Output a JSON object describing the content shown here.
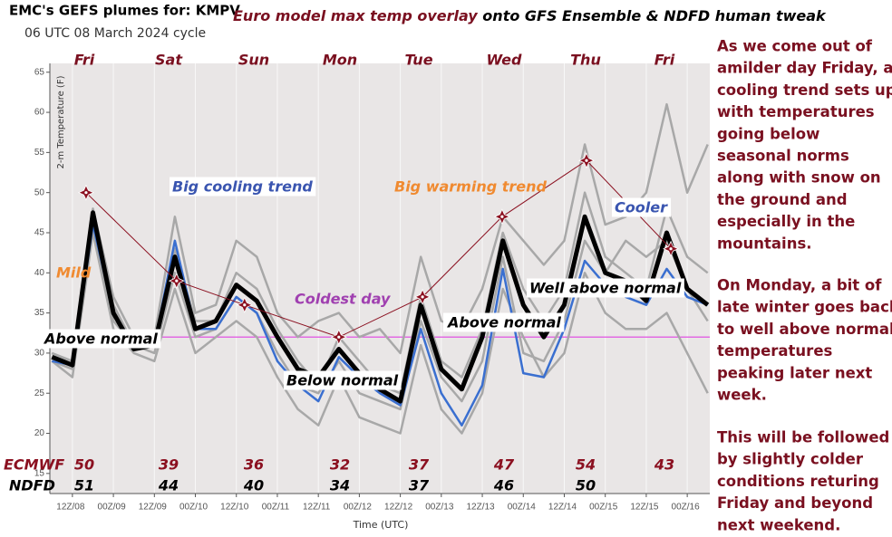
{
  "chart_data": {
    "type": "line",
    "title": "EMC's GEFS plumes for: KMPV",
    "cycle": "06 UTC 08 March 2024 cycle",
    "subtitle_highlight": "Euro model max temp overlay",
    "subtitle_rest": " onto GFS Ensemble & NDFD human tweak",
    "y_label": "2-m Temperature (F)",
    "x_label": "Time (UTC)",
    "xlim": [
      5.4,
      198.6
    ],
    "ylim": [
      12.5,
      66.1
    ],
    "yticks": [
      15,
      20,
      25,
      30,
      35,
      40,
      45,
      50,
      55,
      60,
      65
    ],
    "xticks": [
      {
        "value": 12,
        "label": "12Z/08"
      },
      {
        "value": 24,
        "label": "00Z/09"
      },
      {
        "value": 36,
        "label": "12Z/09"
      },
      {
        "value": 48,
        "label": "00Z/10"
      },
      {
        "value": 60,
        "label": "12Z/10"
      },
      {
        "value": 72,
        "label": "00Z/11"
      },
      {
        "value": 84,
        "label": "12Z/11"
      },
      {
        "value": 96,
        "label": "00Z/12"
      },
      {
        "value": 108,
        "label": "12Z/12"
      },
      {
        "value": 120,
        "label": "00Z/13"
      },
      {
        "value": 132,
        "label": "12Z/13"
      },
      {
        "value": 144,
        "label": "00Z/14"
      },
      {
        "value": 156,
        "label": "12Z/14"
      },
      {
        "value": 168,
        "label": "00Z/15"
      },
      {
        "value": 180,
        "label": "12Z/15"
      },
      {
        "value": 192,
        "label": "00Z/16"
      }
    ],
    "grid": true,
    "days": [
      "Fri",
      "Sat",
      "Sun",
      "Mon",
      "Tue",
      "Wed",
      "Thu",
      "Fri"
    ],
    "x": [
      6,
      12,
      18,
      24,
      30,
      36,
      42,
      48,
      54,
      60,
      66,
      72,
      78,
      84,
      90,
      96,
      102,
      108,
      114,
      120,
      126,
      132,
      138,
      144,
      150,
      156,
      162,
      168,
      174,
      180,
      186,
      192,
      198
    ],
    "series": [
      {
        "color": "#a8a8a8",
        "width": 2.5,
        "values": [
          30,
          29,
          48,
          37,
          32,
          32,
          47,
          35,
          36,
          44,
          42,
          35,
          32,
          34,
          35,
          32,
          33,
          30,
          42,
          34,
          33,
          38,
          47,
          44,
          41,
          44,
          56,
          46,
          47,
          50,
          61,
          50,
          56
        ]
      },
      {
        "color": "#a8a8a8",
        "width": 2.5,
        "values": [
          29,
          27,
          45,
          33,
          30,
          29,
          38,
          30,
          32,
          34,
          32,
          27,
          23,
          21,
          27,
          22,
          21,
          20,
          31,
          23,
          20,
          25,
          38,
          32,
          27,
          30,
          40,
          35,
          33,
          33,
          35,
          30,
          25
        ]
      },
      {
        "color": "#a8a8a8",
        "width": 2.5,
        "values": [
          30,
          28.5,
          47,
          36,
          31,
          31,
          43,
          34,
          34,
          40,
          38,
          33,
          29,
          26,
          32,
          29,
          26,
          25,
          37,
          29,
          27,
          33,
          45,
          38,
          34,
          38,
          50,
          42,
          40,
          38,
          48,
          42,
          40
        ]
      },
      {
        "color": "#a8a8a8",
        "width": 2.5,
        "values": [
          29,
          28,
          46,
          34,
          31,
          30,
          40,
          32,
          33,
          37,
          35,
          30,
          26,
          25,
          29,
          25,
          24,
          23,
          34,
          27,
          24,
          29,
          42,
          30,
          29,
          34,
          44,
          40,
          44,
          42,
          44,
          38,
          34
        ]
      },
      {
        "color": "#3a6fd0",
        "width": 2.5,
        "values": [
          29,
          28.5,
          46,
          35,
          31,
          31,
          44,
          33,
          33,
          37,
          35,
          29,
          26,
          24,
          29.5,
          27,
          25,
          23.5,
          33,
          25,
          21,
          26,
          40.5,
          27.5,
          27,
          33,
          41.5,
          38.5,
          37,
          36,
          40.5,
          37,
          36
        ]
      },
      {
        "color": "#000000",
        "width": 5,
        "values": [
          29.5,
          28.5,
          47.5,
          35,
          30.5,
          31,
          42,
          33,
          34,
          38.5,
          36.5,
          32,
          28,
          27,
          30.5,
          27.5,
          25.5,
          24,
          36,
          28,
          25.5,
          32,
          44,
          36,
          32,
          36,
          47,
          40,
          39,
          36.5,
          45,
          38,
          36
        ]
      }
    ],
    "reference_line": {
      "value": 32,
      "color": "#e040e0"
    },
    "ecmwf": {
      "label": "ECMWF",
      "color": "#8b1020",
      "x": [
        16,
        42.5,
        62.4,
        90,
        114.5,
        137.8,
        162.5,
        187.2
      ],
      "values": [
        50,
        39,
        36,
        32,
        37,
        47,
        54,
        43
      ]
    },
    "ndfd": {
      "label": "NDFD",
      "values": [
        51,
        44,
        40,
        34,
        37,
        46,
        50
      ]
    },
    "annotations": [
      {
        "text": "Mild",
        "color": "#f08a30"
      },
      {
        "text": "Big cooling trend",
        "color": "#3a55b0"
      },
      {
        "text": "Big warming trend",
        "color": "#f08a30"
      },
      {
        "text": "Cooler",
        "color": "#3a55b0"
      },
      {
        "text": "Coldest day",
        "color": "#a040b0"
      },
      {
        "text": "Above normal",
        "color": "#000000"
      },
      {
        "text": "Below normal",
        "color": "#000000"
      },
      {
        "text": "Above normal",
        "color": "#000000"
      },
      {
        "text": "Well above normal",
        "color": "#000000"
      }
    ],
    "discussion": [
      [
        "As we come out of",
        "amilder day Friday, a",
        "cooling trend sets up",
        "with temperatures",
        "going below",
        "seasonal norms",
        "along with snow on",
        "the ground and",
        "especially in the",
        "mountains."
      ],
      [
        "On Monday, a bit of",
        "late winter goes back",
        "to well above normal",
        "temperatures",
        "peaking later next",
        "week."
      ],
      [
        "This will be followed",
        "by slightly colder",
        "conditions returing",
        "Friday and beyond",
        "next weekend."
      ]
    ]
  }
}
